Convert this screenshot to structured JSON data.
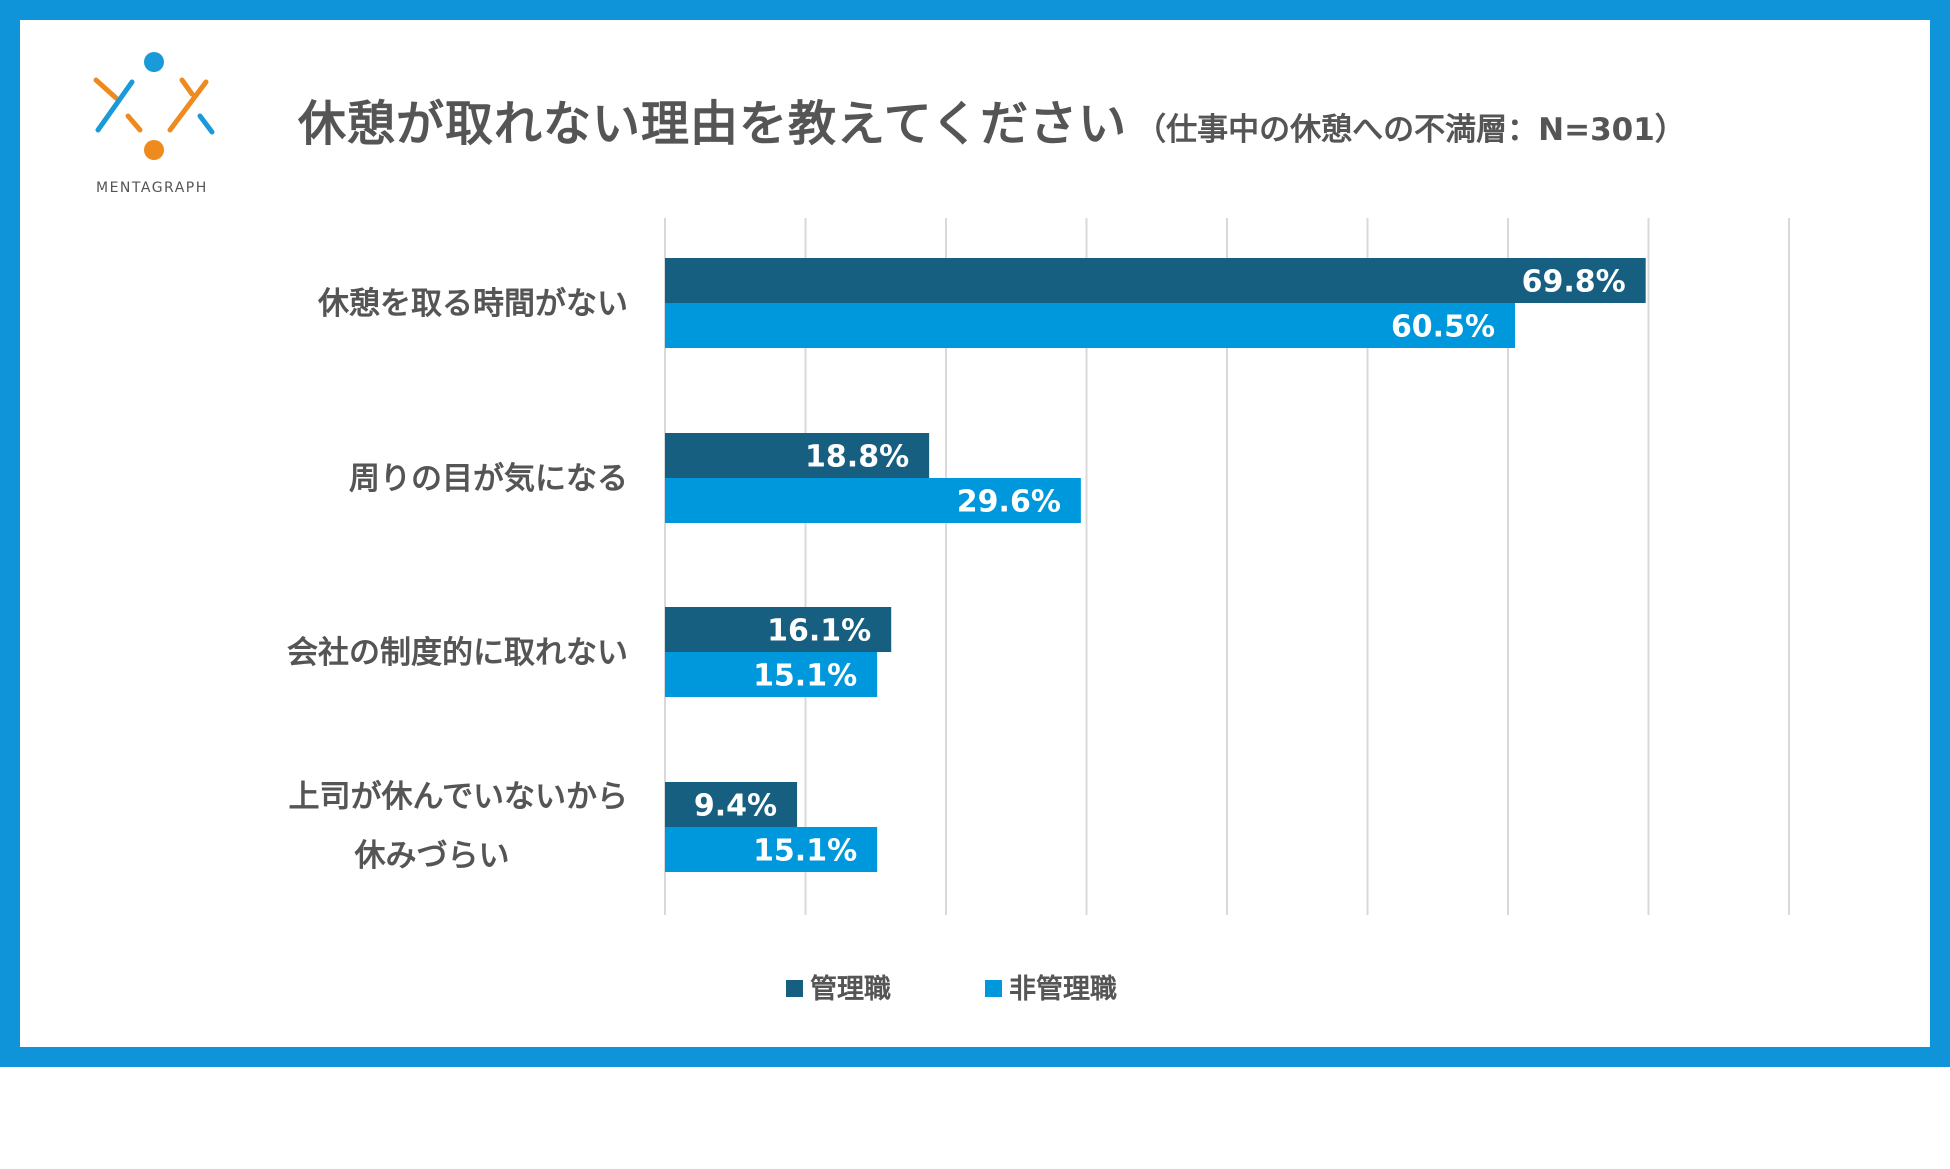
{
  "logo": {
    "name": "MENTAGRAPH"
  },
  "header": {
    "title": "休憩が取れない理由を教えてください",
    "subtitle": "（仕事中の休憩への不満層：N=301）"
  },
  "colors": {
    "frame": "#0f93d9",
    "series_manager": "#175f80",
    "series_non_manager": "#0098dc",
    "grid": "#d9d9d9",
    "text": "#555555",
    "logo_orange": "#ee8a1e",
    "logo_blue": "#1a9ad9"
  },
  "chart_data": {
    "type": "bar",
    "orientation": "horizontal",
    "categories": [
      [
        "休憩を取る時間がない"
      ],
      [
        "周りの目が気になる"
      ],
      [
        "会社の制度的に取れない"
      ],
      [
        "上司が休んでいないから",
        "休みづらい"
      ]
    ],
    "series": [
      {
        "name": "管理職",
        "values": [
          69.8,
          18.8,
          16.1,
          9.4
        ],
        "labels": [
          "69.8%",
          "18.8%",
          "16.1%",
          "9.4%"
        ]
      },
      {
        "name": "非管理職",
        "values": [
          60.5,
          29.6,
          15.1,
          15.1
        ],
        "labels": [
          "60.5%",
          "29.6%",
          "15.1%",
          "15.1%"
        ]
      }
    ],
    "xlim": [
      0,
      80
    ],
    "x_grid_step": 10,
    "grid": true,
    "legend_position": "bottom",
    "unit": "%"
  }
}
